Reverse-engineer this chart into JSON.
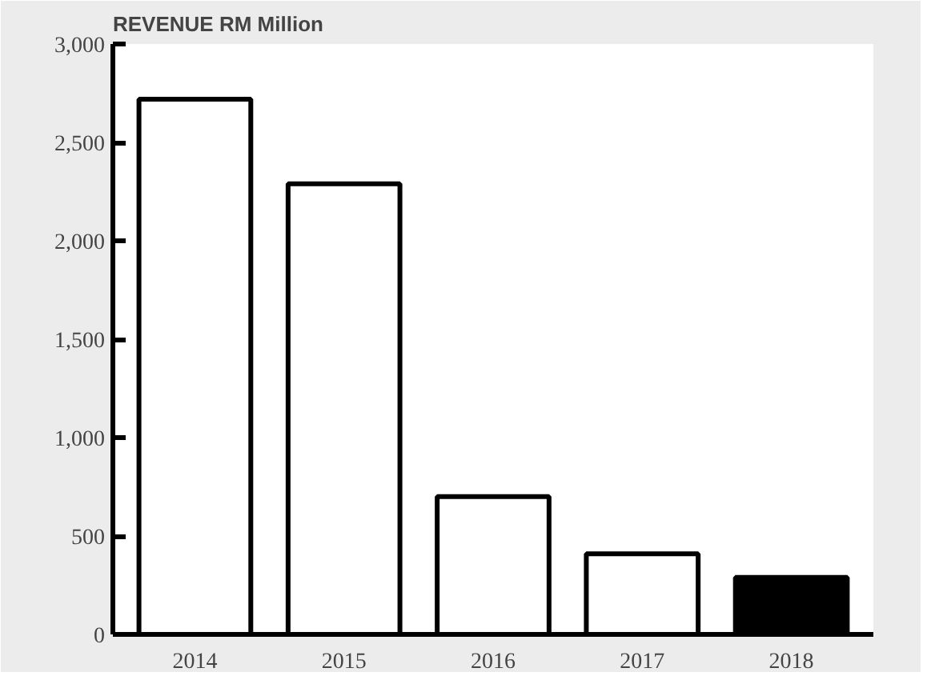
{
  "chart_data": {
    "type": "bar",
    "title": "REVENUE RM Million",
    "categories": [
      "2014",
      "2015",
      "2016",
      "2017",
      "2018"
    ],
    "values": [
      2720,
      2290,
      700,
      410,
      290
    ],
    "colors": [
      "#ffffff",
      "#ffffff",
      "#ffffff",
      "#ffffff",
      "#000000"
    ],
    "ylim": [
      0,
      3000
    ],
    "yticks": [
      0,
      500,
      {
        "value": 1000,
        "label": "1,000"
      },
      {
        "value": 1500,
        "label": "1,500"
      },
      {
        "value": 2000,
        "label": "2,000"
      },
      {
        "value": 2500,
        "label": "2,500"
      },
      {
        "value": 3000,
        "label": "3,000"
      }
    ],
    "grid": false
  }
}
